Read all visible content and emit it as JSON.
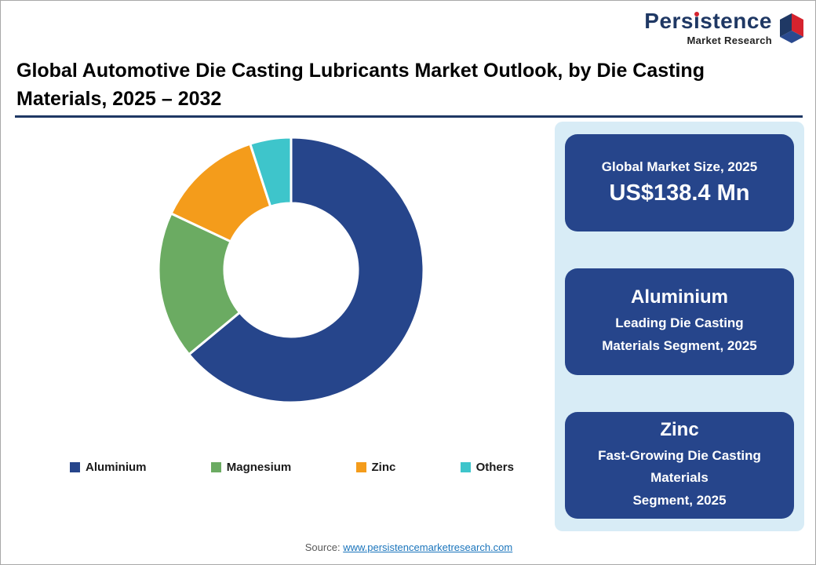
{
  "logo": {
    "brand_top": "Persistence",
    "brand_bottom": "Market Research",
    "brand_color": "#1F3864",
    "accent_red": "#D5232E"
  },
  "header": {
    "title": "Global Automotive Die Casting Lubricants Market Outlook, by Die Casting Materials, 2025 – 2032"
  },
  "chart_data": {
    "type": "pie",
    "subtype": "donut",
    "title": "Global Automotive Die Casting Lubricants Market Outlook, by Die Casting Materials, 2025 – 2032",
    "categories": [
      "Aluminium",
      "Magnesium",
      "Zinc",
      "Others"
    ],
    "values": [
      64,
      18,
      13,
      5
    ],
    "unit": "% share (estimated from arc angles)",
    "colors": [
      "#26458B",
      "#6BAB62",
      "#F49C1B",
      "#3EC5CB"
    ],
    "legend_position": "bottom",
    "start_angle_deg": 0,
    "direction": "clockwise",
    "inner_radius_ratio": 0.5
  },
  "sidebar": {
    "background_color": "#D8ECF6",
    "card_color": "#26458B",
    "cards": [
      {
        "title": "Global Market Size, 2025",
        "value": "US$138.4 Mn"
      },
      {
        "title": "Aluminium",
        "subtitle": "Leading Die Casting\nMaterials Segment, 2025"
      },
      {
        "title": "Zinc",
        "subtitle": "Fast-Growing Die Casting Materials\nSegment, 2025"
      }
    ]
  },
  "footer": {
    "source_label": "Source:",
    "source_link": "www.persistencemarketresearch.com"
  }
}
